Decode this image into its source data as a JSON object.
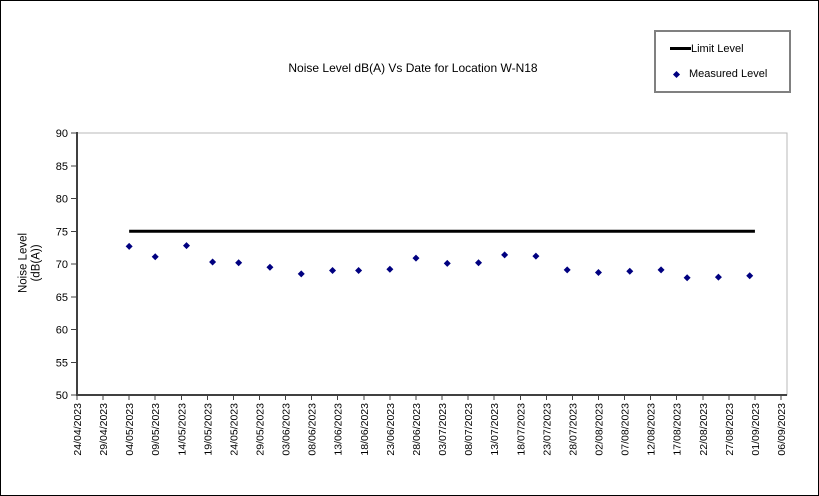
{
  "window": {
    "background": "#ffffff",
    "border_color": "#000000"
  },
  "chart_data": {
    "type": "scatter",
    "title": "Noise Level dB(A) Vs Date for Location W-N18",
    "ylabel_lines": [
      "Noise Level",
      "(dB(A))"
    ],
    "grid": false,
    "legend_position": "top-right",
    "colors": {
      "limit_line": "#000000",
      "measured_marker": "#000080",
      "axis_line": "#404040",
      "plot_border": "#b8b8b8"
    },
    "y_axis": {
      "min": 50,
      "max": 90,
      "tick_step": 5,
      "ticks": [
        90,
        85,
        80,
        75,
        70,
        65,
        60,
        55,
        50
      ]
    },
    "x_axis": {
      "start_date": "24/04/2023",
      "end_date": "06/09/2023",
      "tick_interval_days": 5,
      "total_days": 135,
      "categories": [
        "24/04/2023",
        "29/04/2023",
        "04/05/2023",
        "09/05/2023",
        "14/05/2023",
        "19/05/2023",
        "24/05/2023",
        "29/05/2023",
        "03/06/2023",
        "08/06/2023",
        "13/06/2023",
        "18/06/2023",
        "23/06/2023",
        "28/06/2023",
        "03/07/2023",
        "08/07/2023",
        "13/07/2023",
        "18/07/2023",
        "23/07/2023",
        "28/07/2023",
        "02/08/2023",
        "07/08/2023",
        "12/08/2023",
        "17/08/2023",
        "22/08/2023",
        "27/08/2023",
        "01/09/2023",
        "06/09/2023"
      ]
    },
    "legend": {
      "items": [
        {
          "label": "Limit Level",
          "marker": "line",
          "color": "#000000"
        },
        {
          "label": "Measured Level",
          "marker": "diamond",
          "color": "#000080"
        }
      ]
    },
    "series": [
      {
        "name": "Limit Level",
        "type": "line",
        "color": "#000000",
        "value": 75,
        "x_day_start": 10,
        "x_day_end": 130
      },
      {
        "name": "Measured Level",
        "type": "scatter",
        "color": "#000080",
        "points": [
          {
            "x_day": 10,
            "value": 72.7
          },
          {
            "x_day": 15,
            "value": 71.1
          },
          {
            "x_day": 21,
            "value": 72.8
          },
          {
            "x_day": 26,
            "value": 70.3
          },
          {
            "x_day": 31,
            "value": 70.2
          },
          {
            "x_day": 37,
            "value": 69.5
          },
          {
            "x_day": 43,
            "value": 68.5
          },
          {
            "x_day": 49,
            "value": 69.0
          },
          {
            "x_day": 54,
            "value": 69.0
          },
          {
            "x_day": 60,
            "value": 69.2
          },
          {
            "x_day": 65,
            "value": 70.9
          },
          {
            "x_day": 71,
            "value": 70.1
          },
          {
            "x_day": 77,
            "value": 70.2
          },
          {
            "x_day": 82,
            "value": 71.4
          },
          {
            "x_day": 88,
            "value": 71.2
          },
          {
            "x_day": 94,
            "value": 69.1
          },
          {
            "x_day": 100,
            "value": 68.7
          },
          {
            "x_day": 106,
            "value": 68.9
          },
          {
            "x_day": 112,
            "value": 69.1
          },
          {
            "x_day": 117,
            "value": 67.9
          },
          {
            "x_day": 123,
            "value": 68.0
          },
          {
            "x_day": 129,
            "value": 68.2
          }
        ]
      }
    ]
  }
}
